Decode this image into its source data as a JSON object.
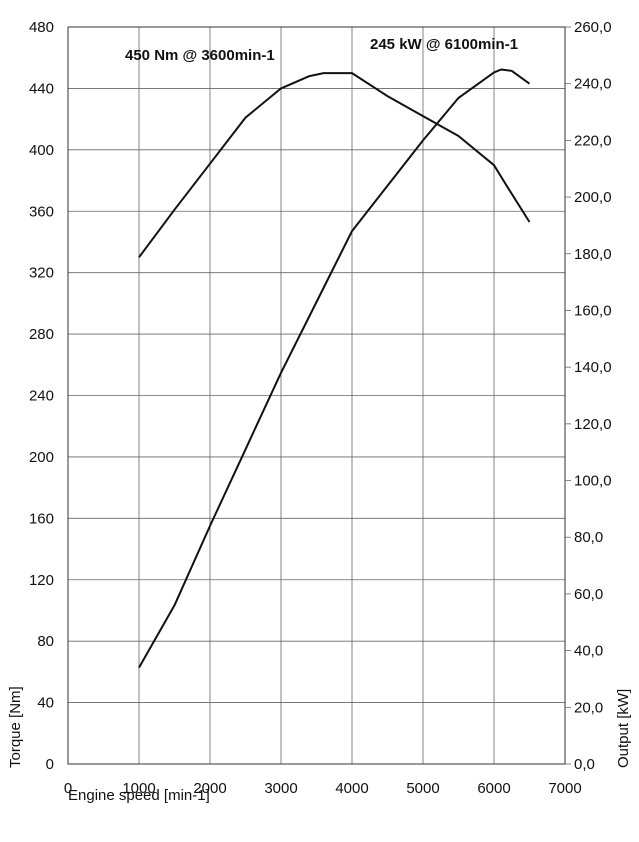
{
  "chart_data": {
    "type": "line",
    "xlabel": "Engine speed [min-1]",
    "ylabel_left": "Torque [Nm]",
    "ylabel_right": "Output [kW]",
    "xlim": [
      0,
      7000
    ],
    "ylim_left": [
      0,
      480
    ],
    "ylim_right": [
      0,
      260
    ],
    "x_ticks": [
      "0",
      "1000",
      "2000",
      "3000",
      "4000",
      "5000",
      "6000",
      "7000"
    ],
    "y_left_ticks": [
      "0",
      "40",
      "80",
      "120",
      "160",
      "200",
      "240",
      "280",
      "320",
      "360",
      "400",
      "440",
      "480"
    ],
    "y_right_ticks": [
      "0,0",
      "20,0",
      "40,0",
      "60,0",
      "80,0",
      "100,0",
      "120,0",
      "140,0",
      "160,0",
      "180,0",
      "200,0",
      "220,0",
      "240,0",
      "260,0"
    ],
    "grid": true,
    "annotations": [
      "450 Nm @ 3600min-1",
      "245 kW @ 6100min-1"
    ],
    "series": [
      {
        "axis": "left",
        "x": [
          1000,
          1500,
          2000,
          2500,
          3000,
          3400,
          3600,
          4000,
          4500,
          5000,
          5500,
          6000,
          6200,
          6500
        ],
        "values": [
          330,
          361,
          391,
          421,
          440,
          448,
          450,
          450,
          435,
          422,
          409,
          390,
          375,
          353
        ]
      },
      {
        "axis": "right",
        "x": [
          1000,
          1500,
          2000,
          2500,
          3000,
          3500,
          4000,
          4500,
          5000,
          5500,
          6000,
          6100,
          6250,
          6500
        ],
        "values": [
          34,
          56,
          84,
          111,
          138,
          163,
          188,
          204,
          220,
          235,
          244,
          245,
          244.5,
          240
        ]
      }
    ]
  }
}
